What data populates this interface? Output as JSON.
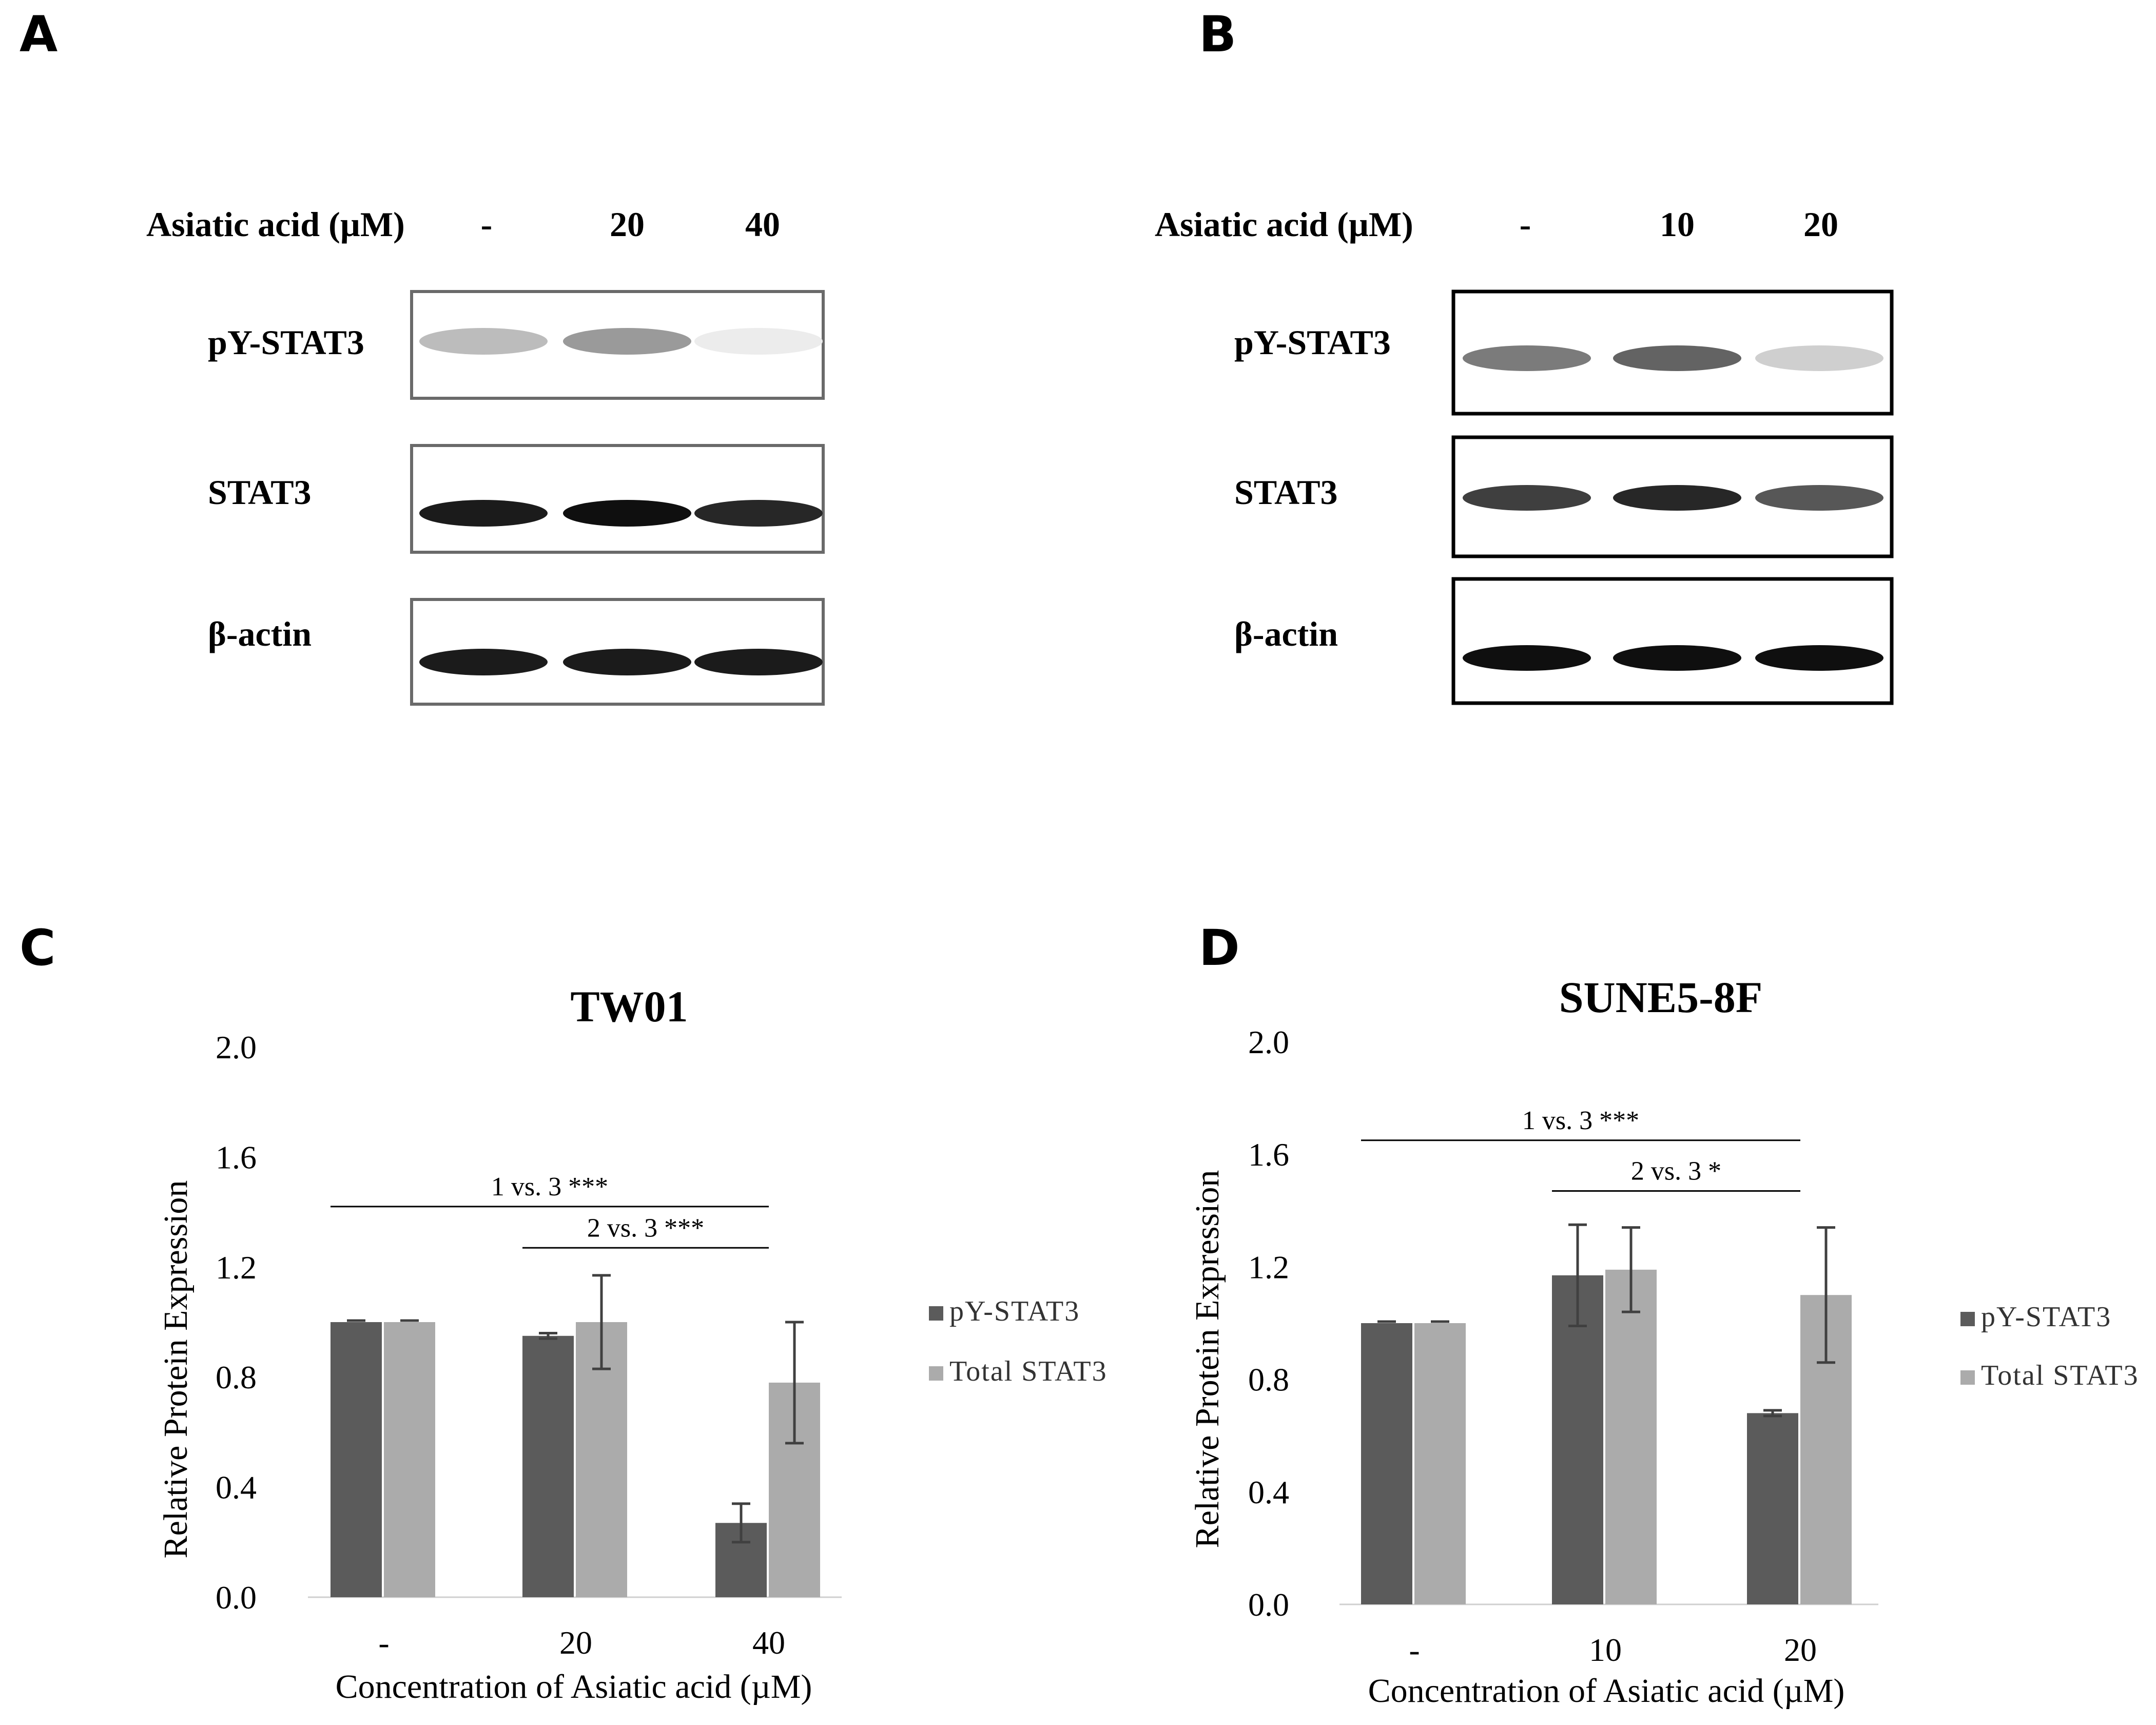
{
  "colors": {
    "py_stat3": "#5b5b5b",
    "total_stat3": "#ababab",
    "error_bar": "#404040"
  },
  "panels": [
    {
      "letter": "A"
    },
    {
      "letter": "B"
    },
    {
      "letter": "C"
    },
    {
      "letter": "D"
    }
  ],
  "blots": [
    {
      "header_label": "Asiatic acid (µM)",
      "lanes": [
        "-",
        "20",
        "40"
      ],
      "rows": [
        {
          "label": "pY-STAT3",
          "band_intensity": [
            0.28,
            0.42,
            0.08
          ]
        },
        {
          "label": "STAT3",
          "band_intensity": [
            0.95,
            1.0,
            0.9
          ]
        },
        {
          "label": "β-actin",
          "band_intensity": [
            0.95,
            0.95,
            0.95
          ]
        }
      ]
    },
    {
      "header_label": "Asiatic acid (µM)",
      "lanes": [
        "-",
        "10",
        "20"
      ],
      "rows": [
        {
          "label": "pY-STAT3",
          "band_intensity": [
            0.55,
            0.65,
            0.2
          ]
        },
        {
          "label": "STAT3",
          "band_intensity": [
            0.8,
            0.9,
            0.7
          ]
        },
        {
          "label": "β-actin",
          "band_intensity": [
            1.0,
            1.0,
            1.0
          ]
        }
      ]
    }
  ],
  "chart_data": [
    {
      "type": "bar",
      "title": "TW01",
      "xlabel": "Concentration of Asiatic acid (µM)",
      "ylabel": "Relative Protein Expression",
      "categories": [
        "-",
        "20",
        "40"
      ],
      "ylim": [
        0,
        2.0
      ],
      "yticks": [
        "0.0",
        "0.4",
        "0.8",
        "1.2",
        "1.6",
        "2.0"
      ],
      "grid": false,
      "legend_position": "right",
      "series": [
        {
          "name": "pY-STAT3",
          "values": [
            1.0,
            0.95,
            0.27
          ],
          "errors": [
            0.0,
            0.01,
            0.07
          ]
        },
        {
          "name": "Total STAT3",
          "values": [
            1.0,
            1.0,
            0.78
          ],
          "errors": [
            0.0,
            0.17,
            0.22
          ]
        }
      ],
      "significance": [
        {
          "label": "1 vs. 3 ***",
          "from_category": 0,
          "to_category": 2,
          "y": 1.42
        },
        {
          "label": "2 vs. 3 ***",
          "from_category": 1,
          "to_category": 2,
          "y": 1.27
        }
      ]
    },
    {
      "type": "bar",
      "title": "SUNE5-8F",
      "xlabel": "Concentration of Asiatic acid (µM)",
      "ylabel": "Relative Protein Expression",
      "categories": [
        "-",
        "10",
        "20"
      ],
      "ylim": [
        0,
        2.0
      ],
      "yticks": [
        "0.0",
        "0.4",
        "0.8",
        "1.2",
        "1.6",
        "2.0"
      ],
      "grid": false,
      "legend_position": "right",
      "series": [
        {
          "name": "pY-STAT3",
          "values": [
            1.0,
            1.17,
            0.68
          ],
          "errors": [
            0.0,
            0.18,
            0.01
          ]
        },
        {
          "name": "Total STAT3",
          "values": [
            1.0,
            1.19,
            1.1
          ],
          "errors": [
            0.0,
            0.15,
            0.24
          ]
        }
      ],
      "significance": [
        {
          "label": "1 vs. 3 ***",
          "from_category": 0,
          "to_category": 2,
          "y": 1.65
        },
        {
          "label": "2 vs. 3 *",
          "from_category": 1,
          "to_category": 2,
          "y": 1.47
        }
      ]
    }
  ]
}
